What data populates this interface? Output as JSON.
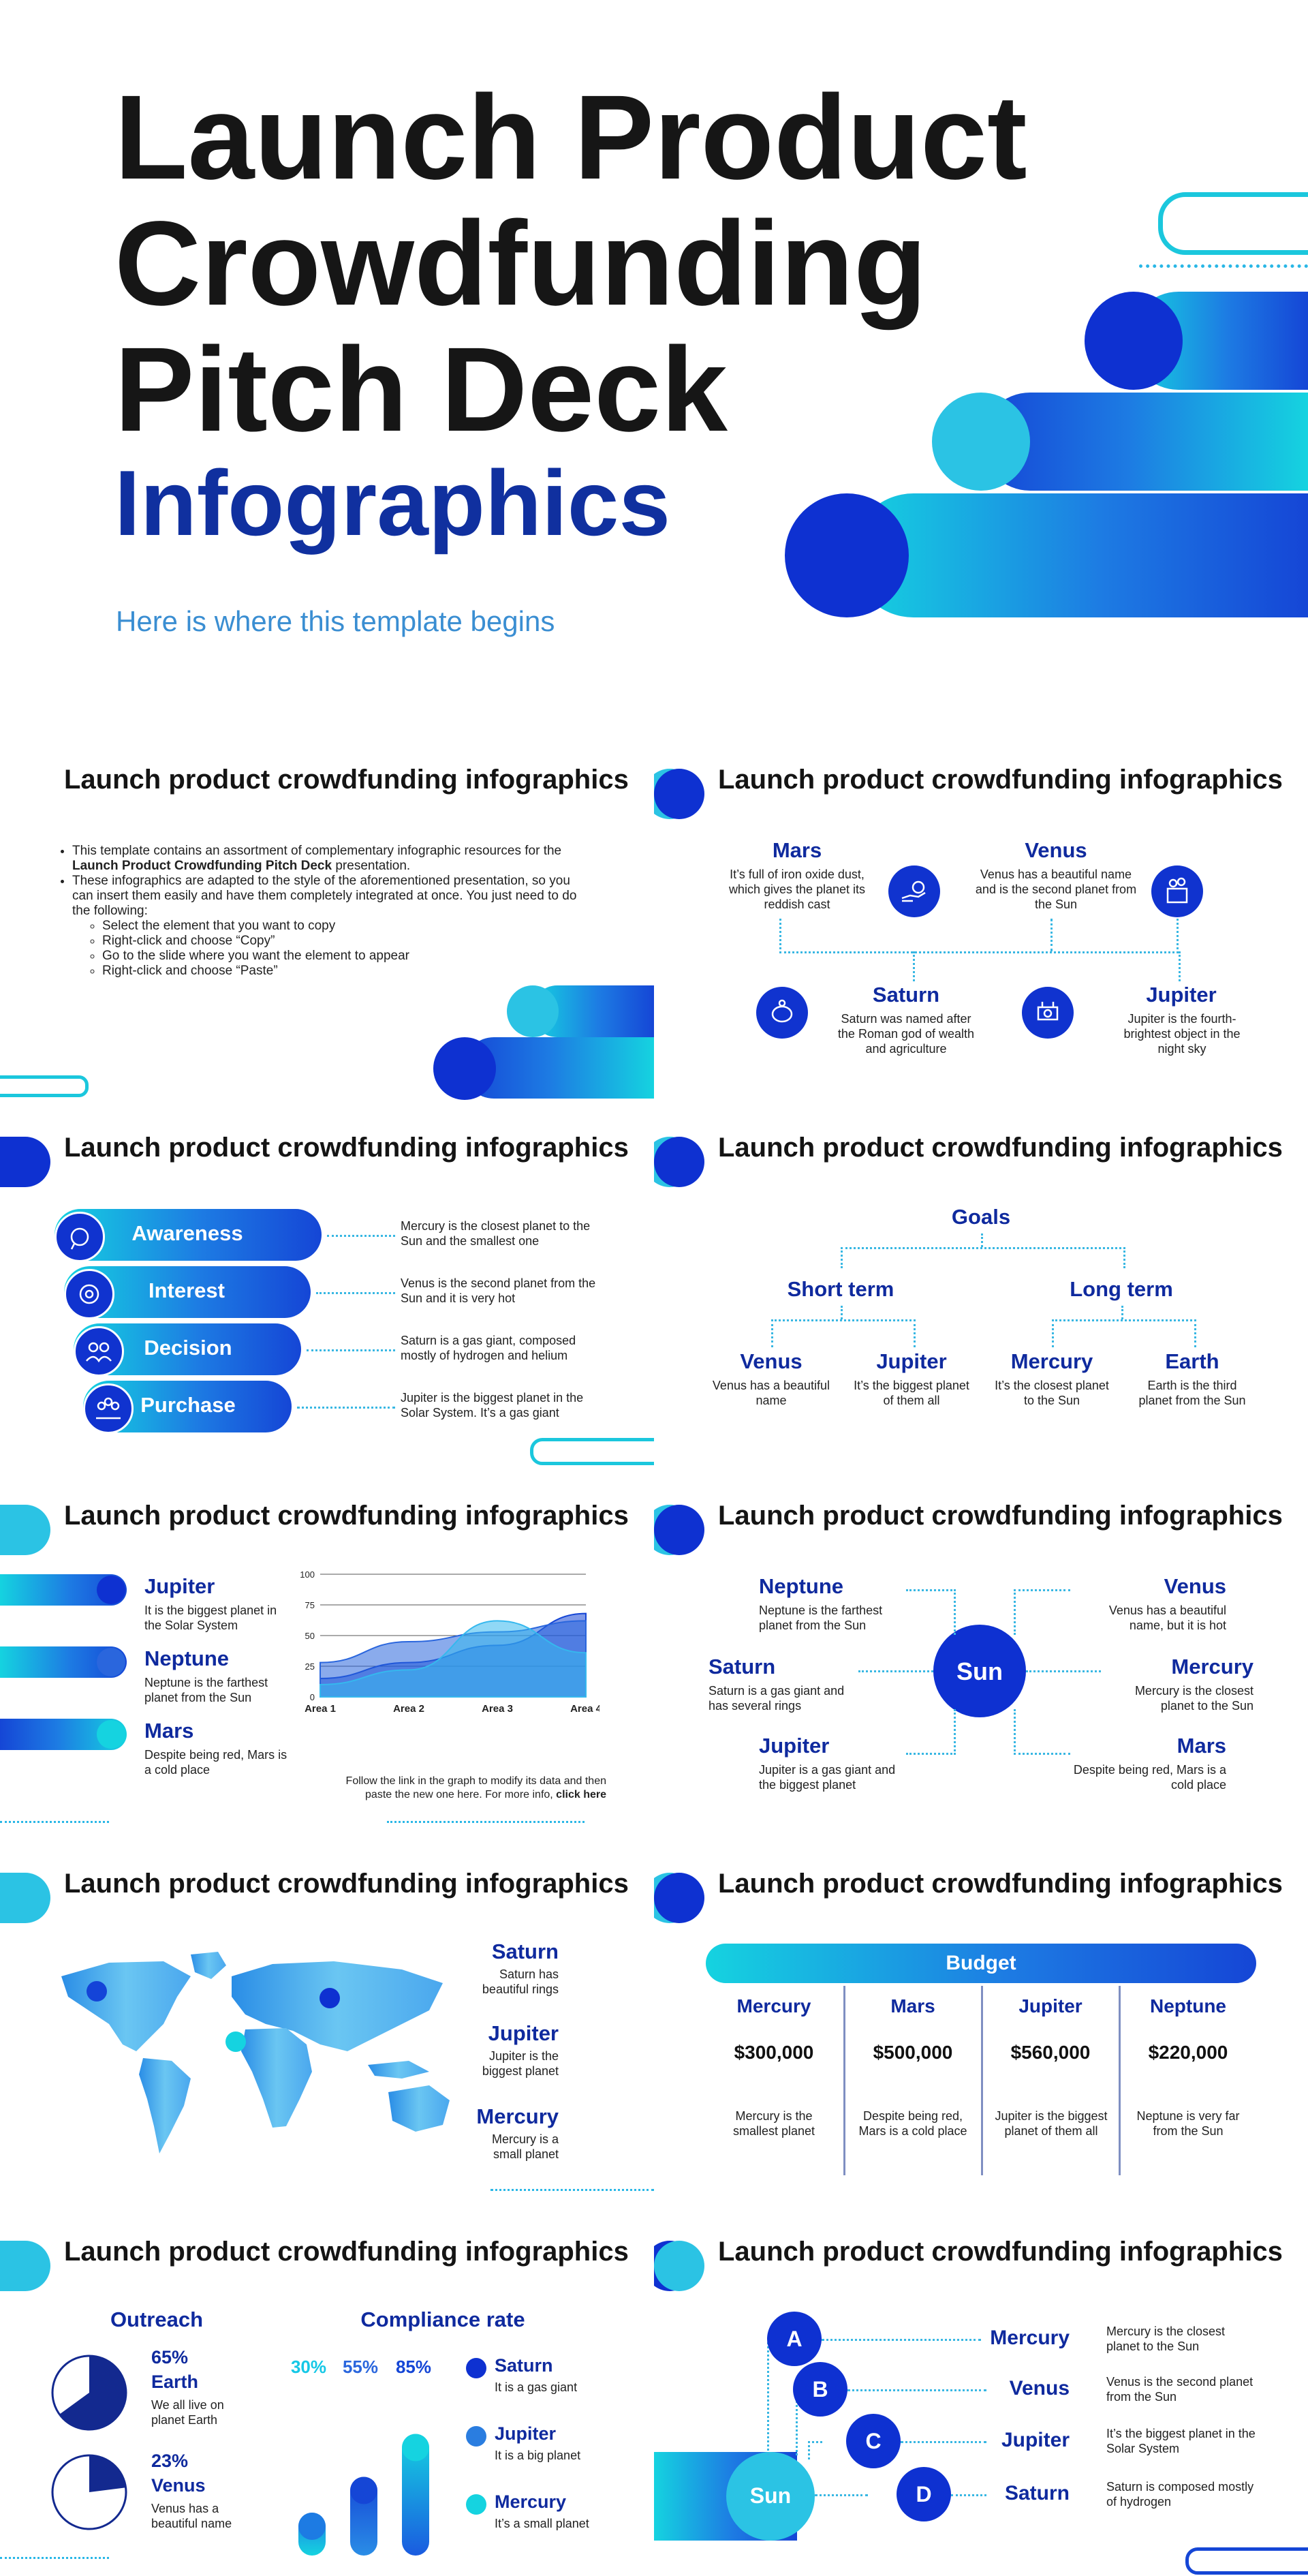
{
  "cover": {
    "title_line1": "Launch Product",
    "title_line2": "Crowdfunding",
    "title_line3": "Pitch Deck",
    "title_line4": "Infographics",
    "subtitle": "Here is where this template begins"
  },
  "slide_title": "Launch product crowdfunding infographics",
  "s1": {
    "intro": "This template contains an assortment of complementary infographic resources for the ",
    "intro_bold": "Launch Product Crowdfunding Pitch Deck",
    "intro_end": " presentation.",
    "bullet2": "These infographics are adapted to the style of the aforementioned presentation, so you can insert them easily and have them completely integrated at once. You just need to do the following:",
    "steps": [
      "Select the element that you want to copy",
      "Right-click and choose “Copy”",
      "Go to the slide where you want the element to appear",
      "Right-click and choose “Paste”"
    ]
  },
  "s2": {
    "items": [
      {
        "name": "Mars",
        "text": "It’s full of iron oxide dust, which gives the planet its reddish cast"
      },
      {
        "name": "Venus",
        "text": "Venus has a beautiful name and is the second planet from the Sun"
      },
      {
        "name": "Saturn",
        "text": "Saturn was named after the Roman god of wealth and agriculture"
      },
      {
        "name": "Jupiter",
        "text": "Jupiter is the fourth-brightest object in the night sky"
      }
    ]
  },
  "s3": {
    "stages": [
      {
        "label": "Awareness",
        "text": "Mercury is the closest planet to the Sun and the smallest one"
      },
      {
        "label": "Interest",
        "text": "Venus is the second planet from the Sun and it is very hot"
      },
      {
        "label": "Decision",
        "text": "Saturn is a gas giant, composed mostly of hydrogen and helium"
      },
      {
        "label": "Purchase",
        "text": "Jupiter is the biggest planet in the Solar System. It’s a gas giant"
      }
    ]
  },
  "s4": {
    "root": "Goals",
    "short": "Short term",
    "long": "Long term",
    "leaves": [
      {
        "name": "Venus",
        "text": "Venus has a beautiful name"
      },
      {
        "name": "Jupiter",
        "text": "It’s the biggest planet of them all"
      },
      {
        "name": "Mercury",
        "text": "It’s the closest planet to the Sun"
      },
      {
        "name": "Earth",
        "text": "Earth is the third planet from the Sun"
      }
    ]
  },
  "s5": {
    "items": [
      {
        "name": "Jupiter",
        "text": "It is the biggest planet in the Solar System"
      },
      {
        "name": "Neptune",
        "text": "Neptune is the farthest planet from the Sun"
      },
      {
        "name": "Mars",
        "text": "Despite being red, Mars is a cold place"
      }
    ],
    "note": "Follow the link in the graph to modify its data and then paste the new one here. For more info, ",
    "note_link": "click here"
  },
  "chart_data": {
    "type": "area",
    "categories": [
      "Area 1",
      "Area 2",
      "Area 3",
      "Area 4"
    ],
    "ylim": [
      0,
      100
    ],
    "yticks": [
      "100",
      "75",
      "50",
      "25",
      "0"
    ],
    "series": [
      {
        "values": [
          15,
          28,
          42,
          68
        ],
        "color": "#1546d6"
      },
      {
        "values": [
          28,
          45,
          53,
          62
        ],
        "color": "#2a66dd"
      },
      {
        "values": [
          10,
          22,
          62,
          36
        ],
        "color": "#35b8ee"
      }
    ]
  },
  "s6": {
    "center": "Sun",
    "items": [
      {
        "name": "Neptune",
        "text": "Neptune is the farthest planet from the Sun"
      },
      {
        "name": "Venus",
        "text": "Venus has a beautiful name, but it is hot"
      },
      {
        "name": "Saturn",
        "text": "Saturn is a gas giant and has several rings"
      },
      {
        "name": "Mercury",
        "text": "Mercury is the closest planet to the Sun"
      },
      {
        "name": "Jupiter",
        "text": "Jupiter is a gas giant and the biggest planet"
      },
      {
        "name": "Mars",
        "text": "Despite being red, Mars is a cold place"
      }
    ]
  },
  "s7": {
    "items": [
      {
        "name": "Saturn",
        "text": "Saturn has beautiful rings"
      },
      {
        "name": "Jupiter",
        "text": "Jupiter is the biggest planet"
      },
      {
        "name": "Mercury",
        "text": "Mercury is a small planet"
      }
    ]
  },
  "s8": {
    "header": "Budget",
    "cols": [
      {
        "name": "Mercury",
        "amount": "$300,000",
        "text": "Mercury is the smallest planet"
      },
      {
        "name": "Mars",
        "amount": "$500,000",
        "text": "Despite being red, Mars is a cold place"
      },
      {
        "name": "Jupiter",
        "amount": "$560,000",
        "text": "Jupiter is the biggest planet of them all"
      },
      {
        "name": "Neptune",
        "amount": "$220,000",
        "text": "Neptune is very far from the Sun"
      }
    ]
  },
  "s9": {
    "outreach": "Outreach",
    "compliance": "Compliance rate",
    "pie1": {
      "pct": "65%",
      "name": "Earth",
      "text": "We all live on planet Earth",
      "value": 65
    },
    "pie2": {
      "pct": "23%",
      "name": "Venus",
      "text": "Venus has a beautiful name",
      "value": 23
    },
    "bars": [
      {
        "label": "30%",
        "value": 30
      },
      {
        "label": "55%",
        "value": 55
      },
      {
        "label": "85%",
        "value": 85
      }
    ],
    "legend": [
      {
        "name": "Saturn",
        "text": "It is a gas giant"
      },
      {
        "name": "Jupiter",
        "text": "It is a big planet"
      },
      {
        "name": "Mercury",
        "text": "It’s a small planet"
      }
    ]
  },
  "s10": {
    "center": "Sun",
    "items": [
      {
        "letter": "A",
        "name": "Mercury",
        "text": "Mercury is the closest planet to the Sun"
      },
      {
        "letter": "B",
        "name": "Venus",
        "text": "Venus is the second planet from the Sun"
      },
      {
        "letter": "C",
        "name": "Jupiter",
        "text": "It’s the biggest planet in the Solar System"
      },
      {
        "letter": "D",
        "name": "Saturn",
        "text": "Saturn is composed mostly of hydrogen"
      }
    ]
  }
}
